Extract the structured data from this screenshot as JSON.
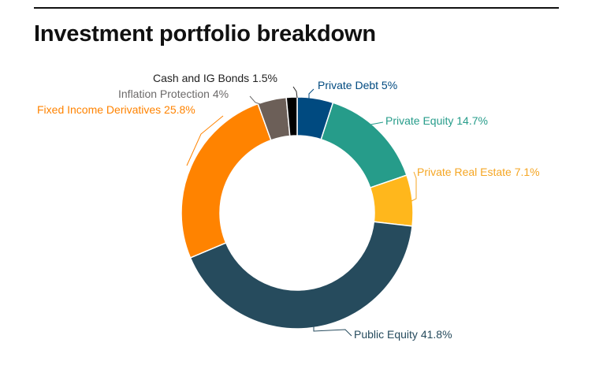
{
  "chart_data": {
    "type": "pie",
    "variant": "donut",
    "title": "Investment portfolio breakdown",
    "slices": [
      {
        "label": "Private Debt",
        "value": 5,
        "color": "#004a80",
        "label_text": "Private Debt 5%"
      },
      {
        "label": "Private Equity",
        "value": 14.7,
        "color": "#269c8a",
        "label_text": "Private Equity 14.7%"
      },
      {
        "label": "Private Real Estate",
        "value": 7.1,
        "color": "#ffb71c",
        "label_text": "Private Real Estate 7.1%"
      },
      {
        "label": "Public Equity",
        "value": 41.8,
        "color": "#264b5d",
        "label_text": "Public Equity 41.8%"
      },
      {
        "label": "Fixed Income Derivatives",
        "value": 25.8,
        "color": "#ff8300",
        "label_text": "Fixed Income Derivatives 25.8%"
      },
      {
        "label": "Inflation Protection",
        "value": 4,
        "color": "#6c5f58",
        "label_text": "Inflation Protection 4%"
      },
      {
        "label": "Cash and IG Bonds",
        "value": 1.5,
        "color": "#000000",
        "label_text": "Cash and IG Bonds 1.5%"
      }
    ],
    "label_colors": {
      "Private Debt": "#004a80",
      "Private Equity": "#269c8a",
      "Private Real Estate": "#f5a623",
      "Public Equity": "#264b5d",
      "Fixed Income Derivatives": "#ff8300",
      "Inflation Protection": "#6c6a6a",
      "Cash and IG Bonds": "#222222"
    },
    "legend": "none"
  }
}
